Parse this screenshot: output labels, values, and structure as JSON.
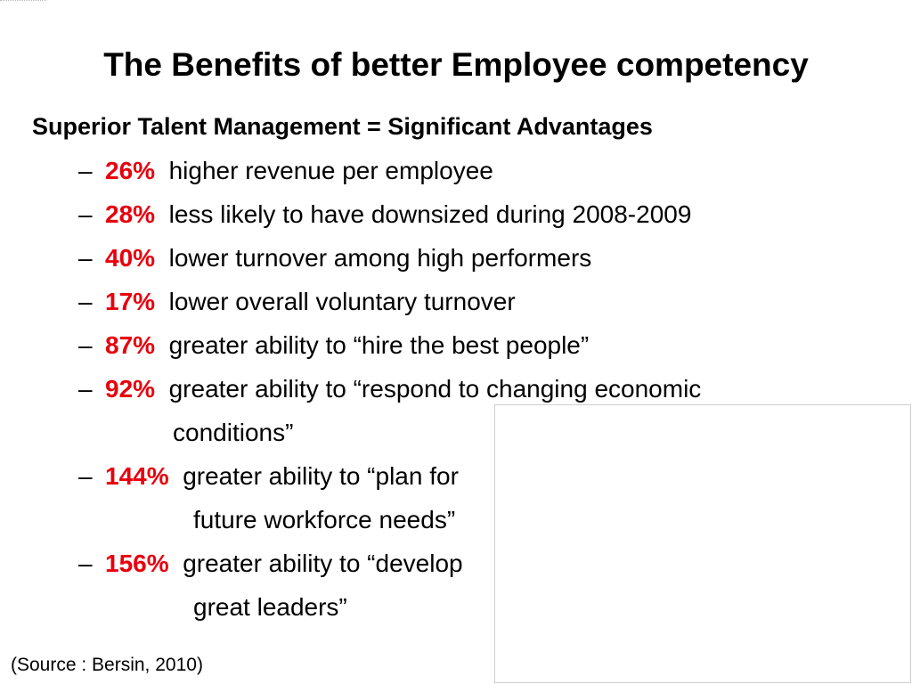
{
  "slide": {
    "title": "The Benefits of better Employee competency",
    "subheading": "Superior Talent Management = Significant Advantages",
    "dash": "–",
    "items": [
      {
        "pct": "26%",
        "text": "higher revenue per employee",
        "cont": ""
      },
      {
        "pct": "28%",
        "text": "less likely to have downsized during 2008-2009",
        "cont": ""
      },
      {
        "pct": "40%",
        "text": "lower turnover among high performers",
        "cont": ""
      },
      {
        "pct": "17%",
        "text": "lower overall voluntary turnover",
        "cont": ""
      },
      {
        "pct": "87%",
        "text": "greater ability to “hire the best people”",
        "cont": ""
      },
      {
        "pct": "92%",
        "text": "greater ability to “respond to changing economic",
        "cont": "conditions”"
      },
      {
        "pct": "144%",
        "text": "greater ability to “plan for",
        "cont": "future workforce needs”"
      },
      {
        "pct": "156%",
        "text": "greater ability to “develop",
        "cont": "great leaders”"
      }
    ],
    "source": "(Source : Bersin, 2010)"
  },
  "colors": {
    "accent": "#e8000d",
    "text": "#000000",
    "background": "#ffffff"
  }
}
